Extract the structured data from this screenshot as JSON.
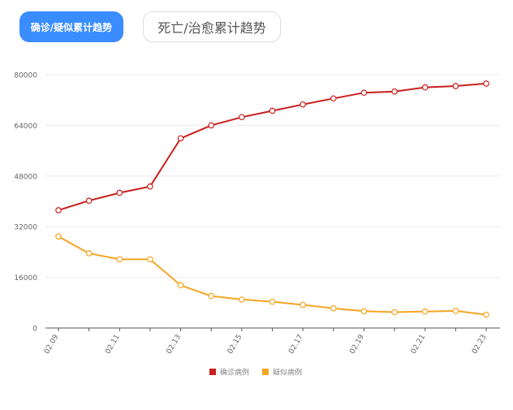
{
  "tabs": {
    "active_label": "确诊/疑似累计趋势",
    "inactive_label": "死亡/治愈累计趋势"
  },
  "colors": {
    "confirmed": "#c8201e",
    "suspected": "#f5a623",
    "active_tab": "#3a8cff",
    "axis": "#666666",
    "grid": "#ececec"
  },
  "chart_data": {
    "type": "line",
    "x": [
      "02.09",
      "02.10",
      "02.11",
      "02.12",
      "02.13",
      "02.14",
      "02.15",
      "02.16",
      "02.17",
      "02.18",
      "02.19",
      "02.20",
      "02.21",
      "02.22",
      "02.23"
    ],
    "x_tick_labels": [
      "02.09",
      "02.11",
      "02.13",
      "02.15",
      "02.17",
      "02.19",
      "02.21",
      "02.23"
    ],
    "y_ticks": [
      0,
      16000,
      32000,
      48000,
      64000,
      80000
    ],
    "ylim": [
      0,
      80000
    ],
    "grid": true,
    "legend_position": "bottom",
    "series": [
      {
        "name": "确诊病例",
        "values": [
          37200,
          40200,
          42700,
          44700,
          59900,
          64000,
          66600,
          68600,
          70600,
          72500,
          74300,
          74700,
          76000,
          76400,
          77200
        ]
      },
      {
        "name": "疑似病例",
        "values": [
          28900,
          23600,
          21700,
          21700,
          13500,
          10100,
          9000,
          8300,
          7300,
          6200,
          5300,
          5000,
          5200,
          5400,
          4200
        ]
      }
    ]
  }
}
